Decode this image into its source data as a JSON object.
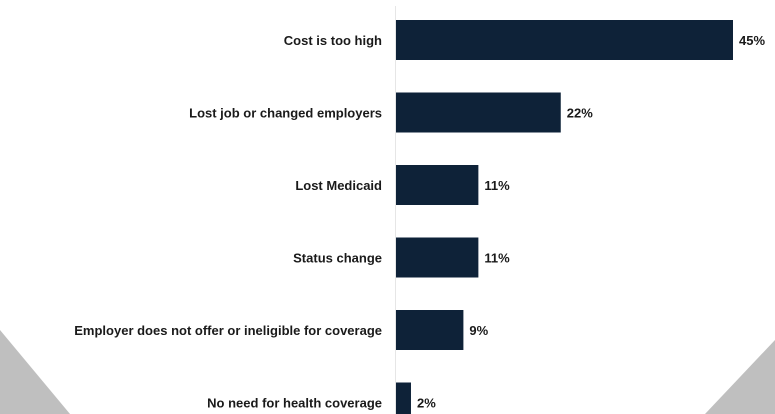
{
  "chart_data": {
    "type": "bar",
    "orientation": "horizontal",
    "categories": [
      "Cost is too high",
      "Lost job or changed employers",
      "Lost Medicaid",
      "Status change",
      "Employer does not offer or ineligible for coverage",
      "No need for health coverage"
    ],
    "values": [
      45,
      22,
      11,
      11,
      9,
      2
    ],
    "value_labels": [
      "45%",
      "22%",
      "11%",
      "11%",
      "9%",
      "2%"
    ],
    "unit": "%",
    "title": "",
    "xlabel": "",
    "ylabel": "",
    "xlim": [
      0,
      45
    ],
    "grid": false,
    "legend": "none",
    "bar_color": "#0e2238"
  },
  "decor": {
    "corner_color": "#bfbfbf"
  }
}
